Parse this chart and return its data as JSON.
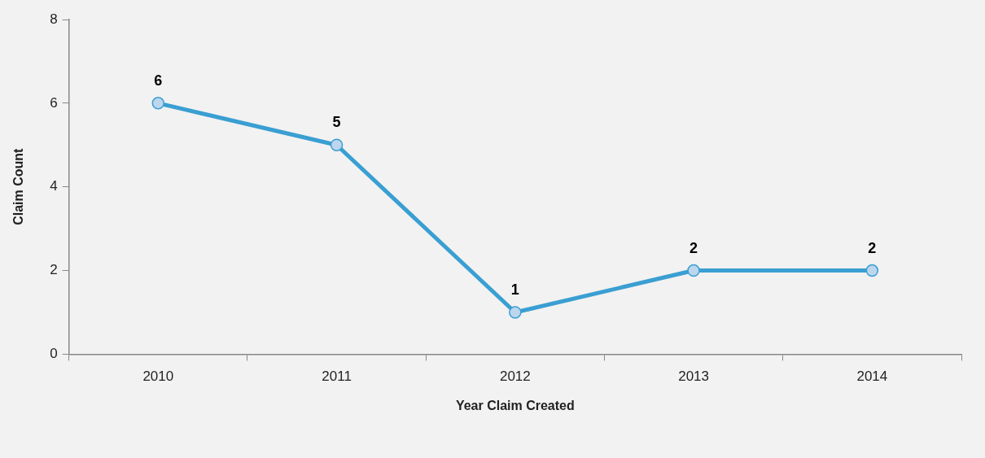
{
  "chart_data": {
    "type": "line",
    "xlabel": "Year Claim Created",
    "ylabel": "Claim Count",
    "categories": [
      "2010",
      "2011",
      "2012",
      "2013",
      "2014"
    ],
    "values": [
      6,
      5,
      1,
      2,
      2
    ],
    "color": "#3a9fd2",
    "ylim": [
      0,
      8
    ],
    "yticks": [
      0,
      2,
      4,
      6,
      8
    ],
    "grid": false,
    "data_labels": true,
    "marker": "circle",
    "line_style": "solid"
  }
}
